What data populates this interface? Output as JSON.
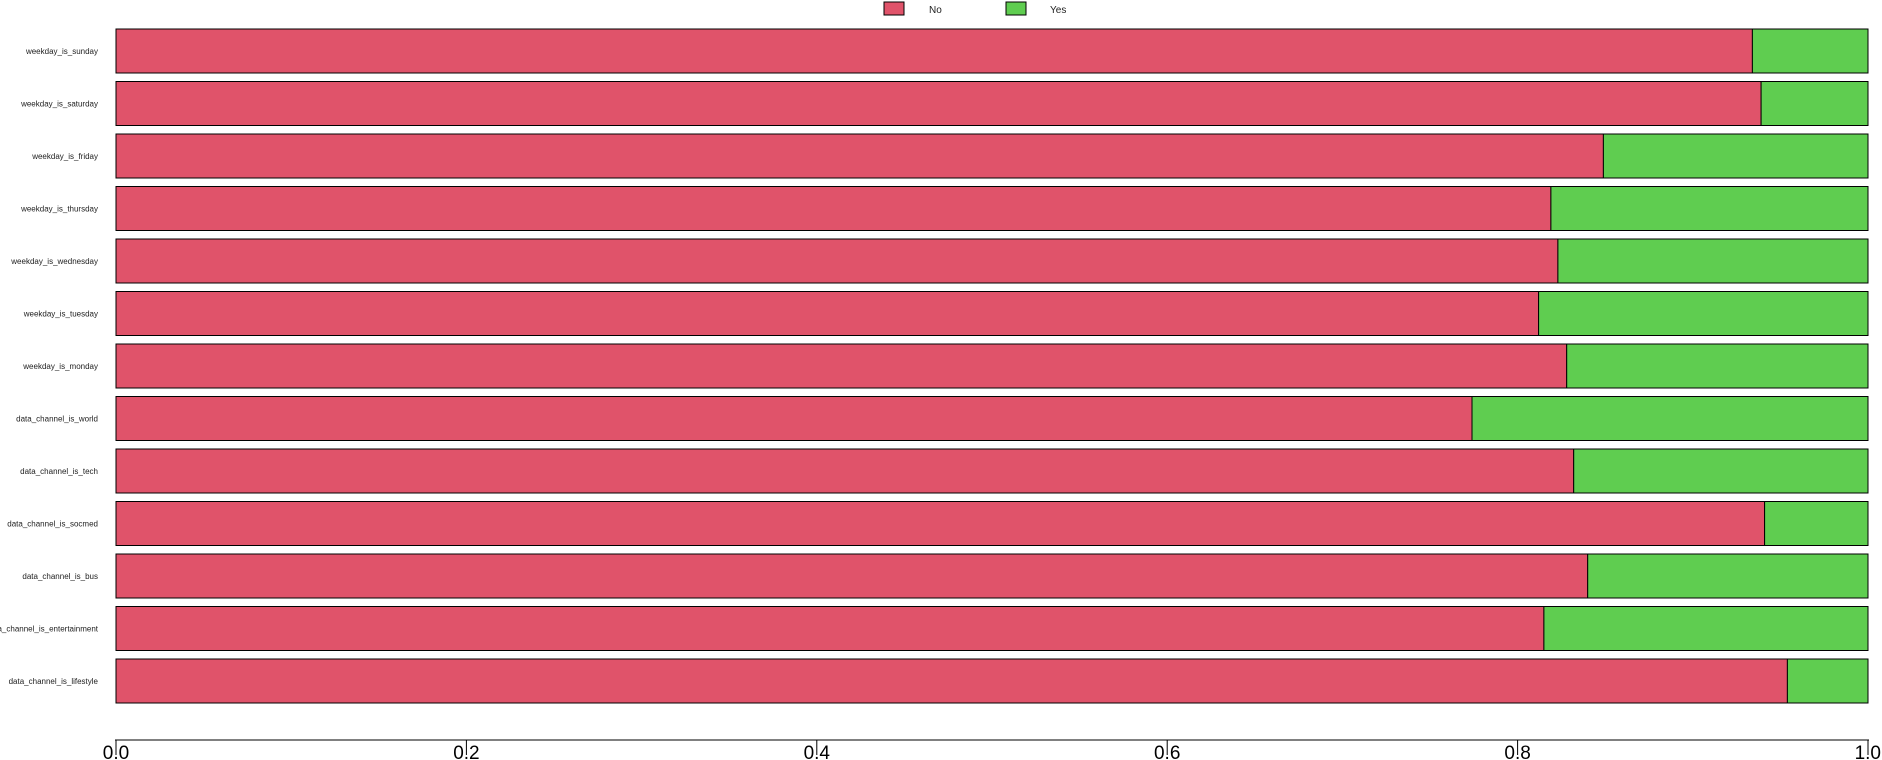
{
  "chart_data": {
    "type": "bar",
    "orientation": "horizontal",
    "stacked": true,
    "title": "",
    "xlabel": "",
    "ylabel": "",
    "xlim": [
      0,
      1
    ],
    "xticks": [
      "0.0",
      "0.2",
      "0.4",
      "0.6",
      "0.8",
      "1.0"
    ],
    "xtick_values": [
      0,
      0.2,
      0.4,
      0.6,
      0.8,
      1.0
    ],
    "legend_position": "top",
    "grid": false,
    "categories": [
      "weekday_is_sunday",
      "weekday_is_saturday",
      "weekday_is_friday",
      "weekday_is_thursday",
      "weekday_is_wednesday",
      "weekday_is_tuesday",
      "weekday_is_monday",
      "data_channel_is_world",
      "data_channel_is_tech",
      "data_channel_is_socmed",
      "data_channel_is_bus",
      "data_channel_is_entertainment",
      "data_channel_is_lifestyle"
    ],
    "series": [
      {
        "name": "No",
        "color": "#e0536a",
        "values": [
          0.934,
          0.939,
          0.849,
          0.819,
          0.823,
          0.812,
          0.828,
          0.774,
          0.832,
          0.941,
          0.84,
          0.815,
          0.954
        ]
      },
      {
        "name": "Yes",
        "color": "#5fcd50",
        "values": [
          0.066,
          0.061,
          0.151,
          0.181,
          0.177,
          0.188,
          0.172,
          0.226,
          0.168,
          0.059,
          0.16,
          0.185,
          0.046
        ]
      }
    ]
  }
}
